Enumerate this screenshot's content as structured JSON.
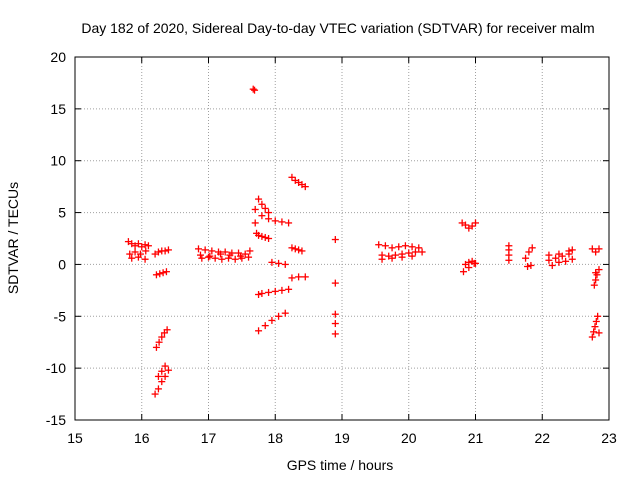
{
  "chart_data": {
    "type": "scatter",
    "title": "Day 182 of 2020, Sidereal Day-to-day VTEC variation (SDTVAR) for receiver malm",
    "xlabel": "GPS time / hours",
    "ylabel": "SDTVAR / TECUs",
    "xlim": [
      15,
      23
    ],
    "ylim": [
      -15,
      20
    ],
    "xticks": [
      15,
      16,
      17,
      18,
      19,
      20,
      21,
      22,
      23
    ],
    "yticks": [
      -15,
      -10,
      -5,
      0,
      5,
      10,
      15,
      20
    ],
    "grid": true,
    "marker": "+",
    "color": "#ff0000",
    "series": [
      {
        "name": "SDTVAR",
        "x": [
          15.8,
          15.85,
          15.9,
          15.95,
          16.0,
          16.05,
          16.1,
          15.82,
          15.9,
          15.98,
          16.06,
          15.85,
          15.95,
          16.05,
          16.2,
          16.25,
          16.3,
          16.35,
          16.4,
          16.22,
          16.27,
          16.32,
          16.37,
          16.22,
          16.26,
          16.3,
          16.34,
          16.38,
          16.2,
          16.25,
          16.3,
          16.35,
          16.4,
          16.25,
          16.3,
          16.35,
          16.85,
          16.95,
          17.05,
          17.15,
          17.25,
          17.35,
          17.45,
          17.55,
          16.9,
          17.0,
          17.1,
          17.2,
          17.3,
          17.4,
          17.5,
          17.6,
          16.88,
          17.02,
          17.18,
          17.32,
          17.48,
          17.62,
          17.67,
          17.69,
          17.7,
          17.7,
          17.72,
          17.75,
          17.8,
          17.85,
          17.9,
          17.75,
          17.8,
          17.85,
          17.9,
          17.75,
          17.8,
          17.9,
          18.0,
          18.1,
          18.2,
          17.75,
          17.85,
          17.95,
          18.05,
          18.15,
          17.95,
          18.05,
          18.15,
          17.8,
          17.9,
          18.0,
          18.1,
          18.2,
          18.25,
          18.3,
          18.35,
          18.4,
          18.45,
          18.25,
          18.3,
          18.35,
          18.4,
          18.25,
          18.35,
          18.45,
          18.9,
          18.9,
          18.9,
          18.9,
          18.9,
          19.55,
          19.65,
          19.75,
          19.85,
          19.95,
          20.05,
          20.15,
          19.6,
          19.7,
          19.8,
          19.9,
          20.0,
          20.1,
          19.6,
          19.75,
          19.9,
          20.05,
          20.2,
          20.8,
          20.85,
          20.9,
          20.95,
          21.0,
          20.82,
          20.9,
          20.98,
          20.85,
          20.9,
          20.95,
          21.0,
          21.5,
          21.5,
          21.5,
          21.5,
          21.75,
          21.8,
          21.85,
          21.78,
          21.83,
          22.1,
          22.2,
          22.3,
          22.4,
          22.45,
          22.15,
          22.25,
          22.35,
          22.45,
          22.1,
          22.25,
          22.4,
          22.75,
          22.8,
          22.85,
          22.8,
          22.78,
          22.8,
          22.82,
          22.85,
          22.75,
          22.77,
          22.79,
          22.81,
          22.83,
          22.85
        ],
        "y": [
          2.2,
          2.0,
          1.8,
          2.0,
          1.7,
          1.9,
          1.8,
          1.0,
          1.2,
          1.0,
          1.3,
          0.6,
          0.7,
          0.5,
          1.0,
          1.2,
          1.3,
          1.3,
          1.4,
          -1.0,
          -0.9,
          -0.8,
          -0.7,
          -8.0,
          -7.5,
          -7.0,
          -6.6,
          -6.3,
          -12.5,
          -12.0,
          -11.3,
          -10.8,
          -10.2,
          -10.8,
          -10.3,
          -9.8,
          1.5,
          1.4,
          1.3,
          1.2,
          1.2,
          1.1,
          1.1,
          1.0,
          0.6,
          0.7,
          0.6,
          0.5,
          0.6,
          0.5,
          0.6,
          0.7,
          0.9,
          0.8,
          1.0,
          0.9,
          0.8,
          1.3,
          16.9,
          16.8,
          5.3,
          4.0,
          3.0,
          2.8,
          2.7,
          2.6,
          2.5,
          6.3,
          5.8,
          5.4,
          5.0,
          -2.9,
          -2.8,
          -2.7,
          -2.6,
          -2.5,
          -2.4,
          -6.4,
          -5.9,
          -5.4,
          -5.0,
          -4.7,
          0.2,
          0.1,
          0.0,
          4.7,
          4.4,
          4.2,
          4.1,
          4.0,
          8.4,
          8.1,
          7.9,
          7.7,
          7.5,
          1.6,
          1.5,
          1.4,
          1.3,
          -1.3,
          -1.2,
          -1.2,
          2.4,
          -1.8,
          -4.8,
          -5.7,
          -6.7,
          1.9,
          1.8,
          1.6,
          1.7,
          1.8,
          1.7,
          1.6,
          0.9,
          0.8,
          0.9,
          1.0,
          1.1,
          1.2,
          0.5,
          0.6,
          0.7,
          0.8,
          1.2,
          4.0,
          3.8,
          3.5,
          3.7,
          4.0,
          -0.7,
          -0.3,
          0.1,
          0.0,
          0.2,
          0.3,
          0.1,
          1.8,
          1.4,
          0.9,
          0.4,
          0.6,
          1.2,
          1.6,
          -0.2,
          -0.1,
          0.4,
          0.6,
          0.8,
          1.0,
          1.4,
          -0.1,
          0.2,
          0.3,
          0.5,
          0.9,
          1.0,
          1.3,
          1.5,
          1.2,
          1.5,
          -0.8,
          -2.0,
          -1.5,
          -1.0,
          -0.5,
          -7.0,
          -6.5,
          -6.0,
          -5.5,
          -5.0,
          -6.6
        ]
      }
    ]
  }
}
